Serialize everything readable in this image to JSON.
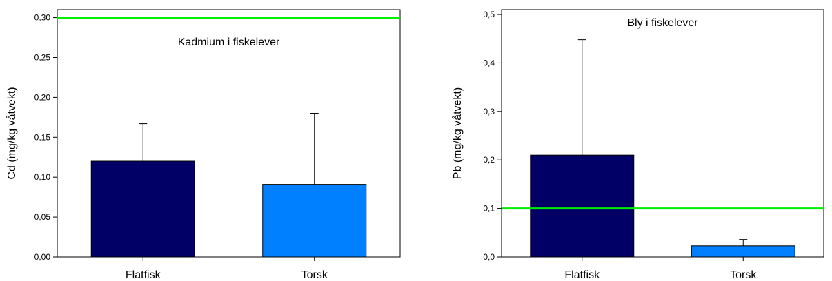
{
  "chart_data": [
    {
      "type": "bar",
      "title": "Kadmium i fiskelever",
      "xlabel": "",
      "ylabel": "Cd (mg/kg våtvekt)",
      "categories": [
        "Flatfisk",
        "Torsk"
      ],
      "values": [
        0.12,
        0.091
      ],
      "error_upper": [
        0.167,
        0.18
      ],
      "bar_colors": [
        "#000066",
        "#0080ff"
      ],
      "ylim": [
        0,
        0.31
      ],
      "yticks": [
        0.0,
        0.05,
        0.1,
        0.15,
        0.2,
        0.25,
        0.3
      ],
      "ytick_labels": [
        "0,00",
        "0,05",
        "0,10",
        "0,15",
        "0,20",
        "0,25",
        "0,30"
      ],
      "reference_line": {
        "value": 0.3,
        "color": "#00ee00"
      },
      "grid": false
    },
    {
      "type": "bar",
      "title": "Bly i fiskelever",
      "xlabel": "",
      "ylabel": "Pb (mg/kg våtvekt)",
      "categories": [
        "Flatfisk",
        "Torsk"
      ],
      "values": [
        0.21,
        0.023
      ],
      "error_upper": [
        0.448,
        0.036
      ],
      "bar_colors": [
        "#000066",
        "#0080ff"
      ],
      "ylim": [
        0,
        0.51
      ],
      "yticks": [
        0.0,
        0.1,
        0.2,
        0.3,
        0.4,
        0.5
      ],
      "ytick_labels": [
        "0,0",
        "0,1",
        "0,2",
        "0,3",
        "0,4",
        "0,5"
      ],
      "reference_line": {
        "value": 0.1,
        "color": "#00ee00"
      },
      "grid": false
    }
  ]
}
